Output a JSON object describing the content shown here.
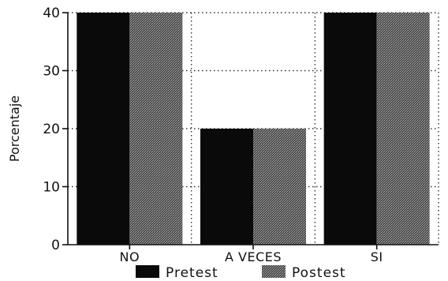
{
  "chart_data": {
    "type": "bar",
    "categories": [
      "NO",
      "A  VECES",
      "SI"
    ],
    "series": [
      {
        "name": "Pretest",
        "values": [
          40,
          20,
          40
        ]
      },
      {
        "name": "Postest",
        "values": [
          40,
          20,
          40
        ]
      }
    ],
    "ylabel": "Porcentaje",
    "xlabel": "",
    "ylim": [
      0,
      40
    ],
    "yticks": [
      0,
      10,
      20,
      30,
      40
    ],
    "grid": true,
    "legend_position": "bottom",
    "colors": {
      "Pretest": "#0a0a0a",
      "Postest": "#5a5a5a"
    }
  }
}
